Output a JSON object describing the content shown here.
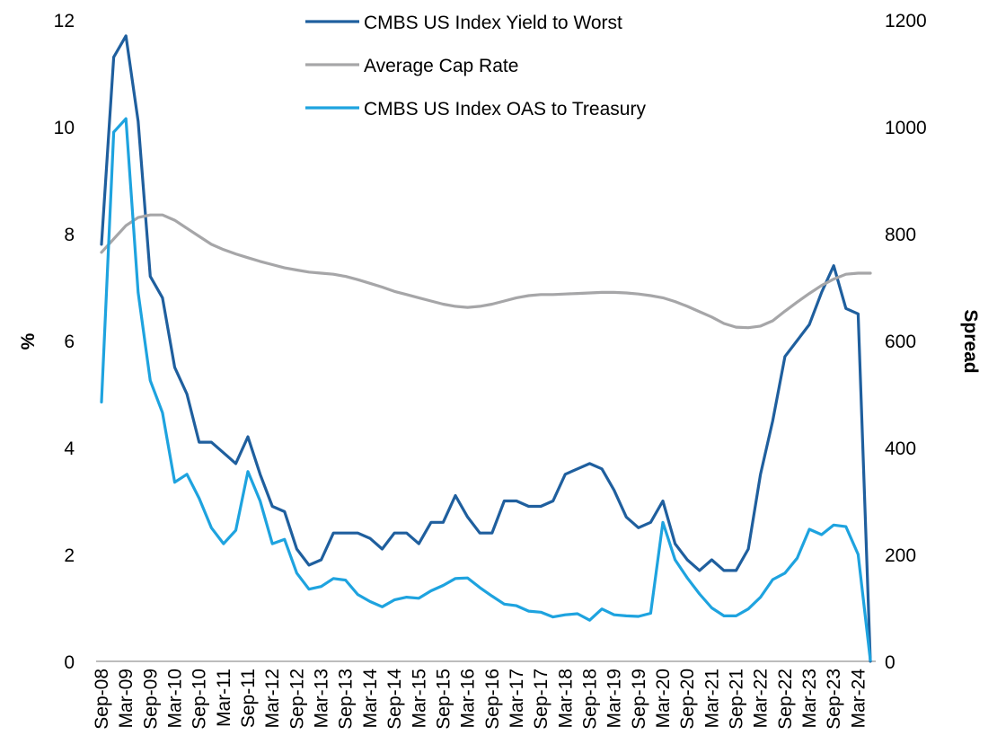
{
  "chart_data": {
    "type": "line",
    "xlabel": "",
    "ylabel": "%",
    "y2label": "Spread",
    "ylim": [
      0,
      12
    ],
    "y2lim": [
      0,
      1200
    ],
    "yticks": [
      "0",
      "2",
      "4",
      "6",
      "8",
      "10",
      "12"
    ],
    "y2ticks": [
      "0",
      "200",
      "400",
      "600",
      "800",
      "1000",
      "1200"
    ],
    "grid": false,
    "legend_position": "top-center",
    "categories": [
      "Sep-08",
      "Dec-08",
      "Mar-09",
      "Jun-09",
      "Sep-09",
      "Dec-09",
      "Mar-10",
      "Jun-10",
      "Sep-10",
      "Dec-10",
      "Mar-11",
      "Jun-11",
      "Sep-11",
      "Dec-11",
      "Mar-12",
      "Jun-12",
      "Sep-12",
      "Dec-12",
      "Mar-13",
      "Jun-13",
      "Sep-13",
      "Dec-13",
      "Mar-14",
      "Jun-14",
      "Sep-14",
      "Dec-14",
      "Mar-15",
      "Jun-15",
      "Sep-15",
      "Dec-15",
      "Mar-16",
      "Jun-16",
      "Sep-16",
      "Dec-16",
      "Mar-17",
      "Jun-17",
      "Sep-17",
      "Dec-17",
      "Mar-18",
      "Jun-18",
      "Sep-18",
      "Dec-18",
      "Mar-19",
      "Jun-19",
      "Sep-19",
      "Dec-19",
      "Mar-20",
      "Jun-20",
      "Sep-20",
      "Dec-20",
      "Mar-21",
      "Jun-21",
      "Sep-21",
      "Dec-21",
      "Mar-22",
      "Jun-22",
      "Sep-22",
      "Dec-22",
      "Mar-23",
      "Jun-23",
      "Sep-23",
      "Dec-23",
      "Mar-24",
      "Jun-24"
    ],
    "tick_labels": [
      "Sep-08",
      "Mar-09",
      "Sep-09",
      "Mar-10",
      "Sep-10",
      "Mar-11",
      "Sep-11",
      "Mar-12",
      "Sep-12",
      "Mar-13",
      "Sep-13",
      "Mar-14",
      "Sep-14",
      "Mar-15",
      "Sep-15",
      "Mar-16",
      "Sep-16",
      "Mar-17",
      "Sep-17",
      "Mar-18",
      "Sep-18",
      "Mar-19",
      "Sep-19",
      "Mar-20",
      "Sep-20",
      "Mar-21",
      "Sep-21",
      "Mar-22",
      "Sep-22",
      "Mar-23",
      "Sep-23",
      "Mar-24"
    ],
    "series": [
      {
        "name": "CMBS US Index Yield to Worst",
        "axis": "left",
        "color": "#1f5f9e",
        "values": [
          7.8,
          11.3,
          11.7,
          10.1,
          7.2,
          6.8,
          5.5,
          5.0,
          4.1,
          4.1,
          3.9,
          3.7,
          4.2,
          3.5,
          2.9,
          2.8,
          2.1,
          1.8,
          1.9,
          2.4,
          2.4,
          2.4,
          2.3,
          2.1,
          2.4,
          2.4,
          2.2,
          2.6,
          2.6,
          3.1,
          2.7,
          2.4,
          2.4,
          3.0,
          3.0,
          2.9,
          2.9,
          3.0,
          3.5,
          3.6,
          3.7,
          3.6,
          3.2,
          2.7,
          2.5,
          2.6,
          3.0,
          2.2,
          1.9,
          1.7,
          1.9,
          1.7,
          1.7,
          2.1,
          3.5,
          4.5,
          5.7,
          6.0,
          6.3,
          6.9,
          7.4,
          6.6,
          6.5,
          0.0
        ]
      },
      {
        "name": "Average Cap Rate",
        "axis": "left",
        "color": "#a6a6a8",
        "values": [
          7.65,
          7.9,
          8.15,
          8.3,
          8.35,
          8.35,
          8.25,
          8.1,
          7.95,
          7.8,
          7.7,
          7.62,
          7.55,
          7.48,
          7.42,
          7.36,
          7.32,
          7.28,
          7.26,
          7.24,
          7.2,
          7.14,
          7.07,
          7.0,
          6.92,
          6.86,
          6.8,
          6.74,
          6.68,
          6.64,
          6.62,
          6.64,
          6.68,
          6.74,
          6.8,
          6.84,
          6.86,
          6.86,
          6.87,
          6.88,
          6.89,
          6.9,
          6.9,
          6.89,
          6.87,
          6.84,
          6.8,
          6.73,
          6.64,
          6.54,
          6.44,
          6.32,
          6.25,
          6.24,
          6.27,
          6.37,
          6.55,
          6.72,
          6.88,
          7.03,
          7.15,
          7.24,
          7.26,
          7.26
        ]
      },
      {
        "name": "CMBS US Index OAS to Treasury",
        "axis": "right",
        "color": "#1ea3df",
        "values": [
          485,
          990,
          1015,
          690,
          525,
          465,
          335,
          350,
          305,
          250,
          220,
          245,
          355,
          300,
          220,
          228,
          165,
          135,
          140,
          155,
          152,
          125,
          112,
          102,
          115,
          120,
          118,
          132,
          142,
          155,
          156,
          138,
          122,
          107,
          104,
          94,
          92,
          83,
          87,
          89,
          77,
          98,
          87,
          85,
          84,
          90,
          260,
          190,
          156,
          126,
          100,
          85,
          85,
          98,
          120,
          153,
          165,
          193,
          247,
          237,
          255,
          252,
          200,
          2
        ]
      }
    ]
  }
}
